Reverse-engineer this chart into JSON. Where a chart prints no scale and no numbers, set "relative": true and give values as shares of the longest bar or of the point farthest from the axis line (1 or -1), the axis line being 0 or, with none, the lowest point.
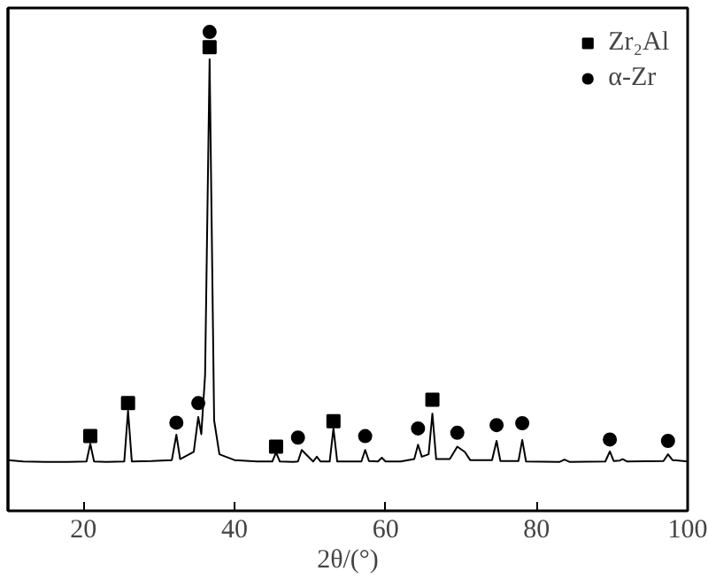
{
  "chart_data": {
    "type": "line",
    "relative": true,
    "xlabel": "2θ/(°)",
    "xlim": [
      10,
      100
    ],
    "xticks": [
      20,
      40,
      60,
      80,
      100
    ],
    "tick_labels": "x",
    "grid": false,
    "legend": "top right",
    "series": [
      {
        "type": "line",
        "color": "#000000",
        "marker": "none",
        "x": [
          10,
          12,
          15,
          18,
          20.4,
          20.9,
          21.4,
          23,
          25.4,
          25.9,
          26.4,
          29,
          31.7,
          32.3,
          32.8,
          34.6,
          35.2,
          35.6,
          36.1,
          36.7,
          37.3,
          38,
          40,
          43,
          45,
          45.5,
          46,
          47.8,
          48.4,
          48.9,
          50.4,
          50.9,
          51.4,
          52.6,
          53.1,
          53.6,
          56.8,
          57.3,
          57.8,
          59,
          59.5,
          60,
          62,
          63.8,
          64.3,
          64.8,
          65.7,
          66.2,
          66.7,
          68.5,
          69.5,
          70.5,
          71.2,
          74.1,
          74.7,
          75.2,
          77.6,
          78.1,
          78.6,
          83,
          83.7,
          84.4,
          89.1,
          89.7,
          90.2,
          91,
          91.4,
          92,
          96.8,
          97.4,
          98,
          100
        ],
        "values": [
          0.106,
          0.103,
          0.102,
          0.102,
          0.103,
          0.14,
          0.103,
          0.102,
          0.103,
          0.209,
          0.103,
          0.104,
          0.106,
          0.159,
          0.108,
          0.123,
          0.196,
          0.16,
          0.283,
          0.943,
          0.189,
          0.118,
          0.106,
          0.103,
          0.103,
          0.122,
          0.103,
          0.102,
          0.103,
          0.127,
          0.103,
          0.113,
          0.103,
          0.103,
          0.172,
          0.103,
          0.103,
          0.127,
          0.104,
          0.103,
          0.111,
          0.103,
          0.103,
          0.108,
          0.138,
          0.113,
          0.118,
          0.203,
          0.108,
          0.108,
          0.134,
          0.123,
          0.106,
          0.106,
          0.146,
          0.104,
          0.104,
          0.148,
          0.103,
          0.102,
          0.107,
          0.102,
          0.103,
          0.124,
          0.104,
          0.105,
          0.108,
          0.103,
          0.104,
          0.118,
          0.106,
          0.103
        ]
      },
      {
        "type": "scatter",
        "name": "Zr₂Al",
        "color": "#000000",
        "marker": "square",
        "x": [
          20.9,
          25.9,
          36.7,
          45.5,
          53.1,
          66.2
        ],
        "values": [
          0.156,
          0.225,
          0.968,
          0.134,
          0.187,
          0.232
        ]
      },
      {
        "type": "scatter",
        "name": "α-Zr",
        "color": "#000000",
        "marker": "circle",
        "x": [
          32.3,
          35.2,
          36.7,
          48.4,
          57.3,
          64.3,
          69.5,
          74.7,
          78.1,
          89.7,
          97.4
        ],
        "values": [
          0.184,
          0.225,
          1,
          0.153,
          0.156,
          0.172,
          0.163,
          0.179,
          0.183,
          0.149,
          0.146
        ]
      }
    ]
  }
}
